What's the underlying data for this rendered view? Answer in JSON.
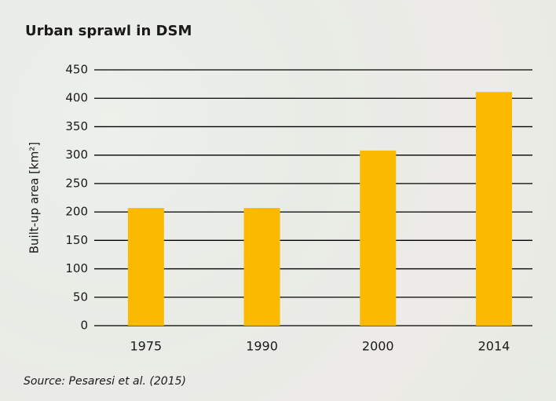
{
  "chart_data": {
    "type": "bar",
    "title": "Urban sprawl in DSM",
    "y_label": "Built-up area [km²]",
    "source": "Source: Pesaresi et al. (2015)",
    "categories": [
      "1975",
      "1990",
      "2000",
      "2014"
    ],
    "values": [
      207,
      207,
      308,
      411
    ],
    "color": "#fbb900",
    "ylim": [
      0,
      450
    ],
    "yticks": [
      0,
      50,
      100,
      150,
      200,
      250,
      300,
      350,
      400,
      450
    ],
    "grid": true
  }
}
